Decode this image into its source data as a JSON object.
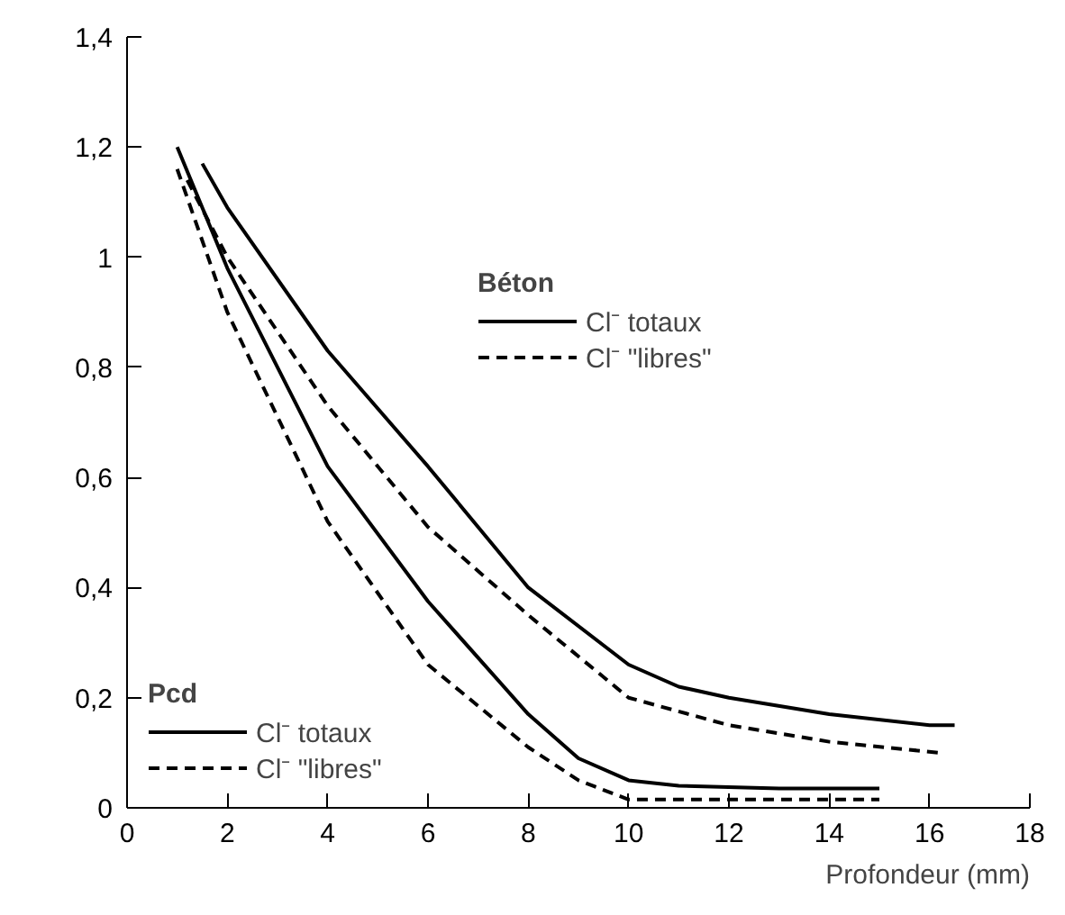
{
  "chart_data": {
    "type": "line",
    "xlabel": "Profondeur (mm)",
    "xlim": [
      0,
      18
    ],
    "xticks": [
      0,
      2,
      4,
      6,
      8,
      10,
      12,
      14,
      16,
      18
    ],
    "ylim": [
      0,
      1.4
    ],
    "yticks": [
      0,
      {
        "value": 0.2,
        "label": "0,2"
      },
      {
        "value": 0.4,
        "label": "0,4"
      },
      {
        "value": 0.6,
        "label": "0,6"
      },
      {
        "value": 0.8,
        "label": "0,8"
      },
      1,
      {
        "value": 1.2,
        "label": "1,2"
      },
      {
        "value": 1.4,
        "label": "1,4"
      }
    ],
    "grid": false,
    "legend": "bottom left",
    "annotations": [
      "Béton",
      "Pcd"
    ],
    "series": [
      {
        "name": "Cl⁻ totaux",
        "color": "#000000",
        "line_style": "solid",
        "x": [
          1.5,
          2,
          4,
          6,
          8,
          10,
          11,
          12,
          14,
          16,
          16.5
        ],
        "values": [
          1.17,
          1.09,
          0.83,
          0.62,
          0.4,
          0.26,
          0.22,
          0.2,
          0.17,
          0.15,
          0.15
        ]
      },
      {
        "name": "Cl⁻ \"libres\"",
        "color": "#000000",
        "line_style": "dashed",
        "x": [
          1.2,
          2,
          4,
          6,
          8,
          10,
          12,
          14,
          16.2
        ],
        "values": [
          1.14,
          1.0,
          0.73,
          0.51,
          0.35,
          0.2,
          0.15,
          0.12,
          0.1
        ]
      },
      {
        "name": "Cl⁻ totaux",
        "color": "#000000",
        "line_style": "solid",
        "x": [
          1,
          2,
          4,
          6,
          8,
          9,
          10,
          11,
          13,
          15
        ],
        "values": [
          1.2,
          0.98,
          0.62,
          0.375,
          0.17,
          0.09,
          0.05,
          0.04,
          0.035,
          0.035
        ]
      },
      {
        "name": "Cl⁻ \"libres\"",
        "color": "#000000",
        "line_style": "dashed",
        "x": [
          1,
          2,
          4,
          6,
          8,
          9,
          10,
          12,
          15
        ],
        "values": [
          1.16,
          0.9,
          0.52,
          0.26,
          0.11,
          0.05,
          0.015,
          0.015,
          0.015
        ]
      }
    ]
  }
}
